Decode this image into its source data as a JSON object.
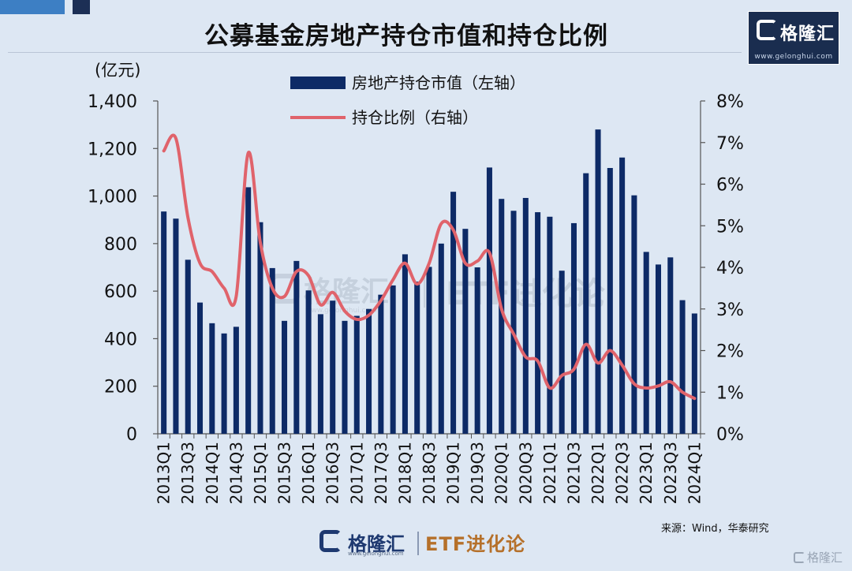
{
  "header": {
    "title": "公募基金房地产持仓市值和持仓比例",
    "logo_name": "格隆汇",
    "logo_url": "www.gelonghui.com"
  },
  "watermark": {
    "logo_name": "格隆汇",
    "logo_url": "www.gelonghui.com",
    "text": "ETF进化论"
  },
  "footer": {
    "source": "来源：Wind，华泰研究",
    "logo_name": "格隆汇",
    "logo_url": "www.gelonghui.com",
    "logo_sub": "ETF进化论",
    "corner_mark": "格隆汇"
  },
  "colors": {
    "bar": "#0d2a66",
    "line": "#e0636b",
    "axis": "#555555",
    "text": "#111111"
  },
  "chart_data": {
    "type": "bar",
    "title": "公募基金房地产持仓市值和持仓比例",
    "ylabel": "(亿元)",
    "ylim": [
      0,
      1400
    ],
    "yticks": [
      0,
      200,
      400,
      600,
      800,
      1000,
      1200,
      1400
    ],
    "ytick_labels": [
      "0",
      "200",
      "400",
      "600",
      "800",
      "1,000",
      "1,200",
      "1,400"
    ],
    "y2lim": [
      0,
      8
    ],
    "y2ticks": [
      0,
      1,
      2,
      3,
      4,
      5,
      6,
      7,
      8
    ],
    "y2tick_labels": [
      "0%",
      "1%",
      "2%",
      "3%",
      "4%",
      "5%",
      "6%",
      "7%",
      "8%"
    ],
    "categories": [
      "2013Q1",
      "2013Q2",
      "2013Q3",
      "2013Q4",
      "2014Q1",
      "2014Q2",
      "2014Q3",
      "2014Q4",
      "2015Q1",
      "2015Q2",
      "2015Q3",
      "2015Q4",
      "2016Q1",
      "2016Q2",
      "2016Q3",
      "2016Q4",
      "2017Q1",
      "2017Q2",
      "2017Q3",
      "2017Q4",
      "2018Q1",
      "2018Q2",
      "2018Q3",
      "2018Q4",
      "2019Q1",
      "2019Q2",
      "2019Q3",
      "2019Q4",
      "2020Q1",
      "2020Q2",
      "2020Q3",
      "2020Q4",
      "2021Q1",
      "2021Q2",
      "2021Q3",
      "2021Q4",
      "2022Q1",
      "2022Q2",
      "2022Q3",
      "2022Q4",
      "2023Q1",
      "2023Q2",
      "2023Q3",
      "2023Q4",
      "2024Q1"
    ],
    "tick_labels": [
      "2013Q1",
      "2013Q3",
      "2014Q1",
      "2014Q3",
      "2015Q1",
      "2015Q3",
      "2016Q1",
      "2016Q3",
      "2017Q1",
      "2017Q3",
      "2018Q1",
      "2018Q3",
      "2019Q1",
      "2019Q3",
      "2020Q1",
      "2020Q3",
      "2021Q1",
      "2021Q3",
      "2022Q1",
      "2022Q3",
      "2023Q1",
      "2023Q3",
      "2024Q1"
    ],
    "legend_position": "top-center",
    "series": [
      {
        "name": "房地产持仓市值（左轴）",
        "type": "bar",
        "axis": "left",
        "values": [
          935,
          905,
          732,
          552,
          465,
          422,
          450,
          1037,
          890,
          697,
          475,
          727,
          603,
          503,
          560,
          475,
          496,
          525,
          585,
          624,
          755,
          640,
          702,
          800,
          1018,
          862,
          700,
          1120,
          988,
          938,
          992,
          932,
          913,
          686,
          886,
          1096,
          1280,
          1118,
          1162,
          1003,
          765,
          712,
          742,
          562,
          506
        ]
      },
      {
        "name": "持仓比例（右轴）",
        "type": "line",
        "axis": "right",
        "values": [
          6.8,
          7.1,
          5.2,
          4.1,
          3.9,
          3.5,
          3.3,
          6.75,
          4.6,
          3.5,
          3.3,
          3.9,
          3.8,
          3.1,
          3.4,
          2.95,
          2.75,
          2.85,
          3.2,
          3.7,
          4.1,
          3.6,
          4.1,
          5.05,
          4.9,
          4.1,
          4.15,
          4.35,
          3.0,
          2.4,
          1.85,
          1.75,
          1.1,
          1.4,
          1.55,
          2.15,
          1.7,
          2.0,
          1.65,
          1.2,
          1.1,
          1.15,
          1.25,
          1.0,
          0.85
        ]
      }
    ]
  }
}
